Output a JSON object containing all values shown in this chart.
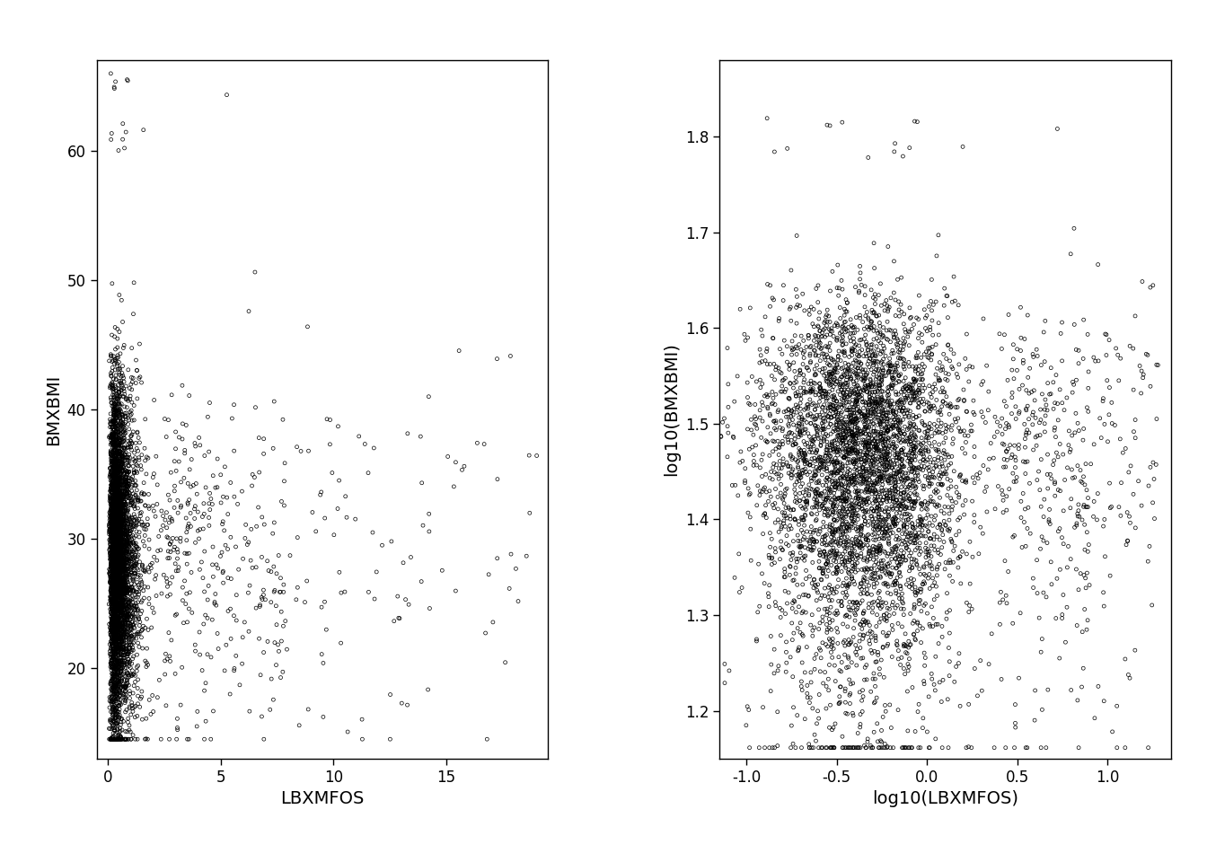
{
  "left_plot": {
    "xlabel": "LBXMFOS",
    "ylabel": "BMXBMI",
    "xlim": [
      -0.5,
      19.5
    ],
    "ylim": [
      13,
      67
    ],
    "xticks": [
      0,
      5,
      10,
      15
    ],
    "yticks": [
      20,
      30,
      40,
      50,
      60
    ]
  },
  "right_plot": {
    "xlabel": "log10(LBXMFOS)",
    "ylabel": "log10(BMXBMI)",
    "xlim": [
      -1.15,
      1.35
    ],
    "ylim": [
      1.15,
      1.88
    ],
    "xticks": [
      -1.0,
      -0.5,
      0.0,
      0.5,
      1.0
    ],
    "yticks": [
      1.2,
      1.3,
      1.4,
      1.5,
      1.6,
      1.7,
      1.8
    ]
  },
  "n_points": 5000,
  "seed": 7,
  "marker_size": 4,
  "marker_color": "black",
  "linewidth": 0.5,
  "background_color": "white",
  "face_color": "white",
  "label_fontsize": 14,
  "tick_fontsize": 12
}
